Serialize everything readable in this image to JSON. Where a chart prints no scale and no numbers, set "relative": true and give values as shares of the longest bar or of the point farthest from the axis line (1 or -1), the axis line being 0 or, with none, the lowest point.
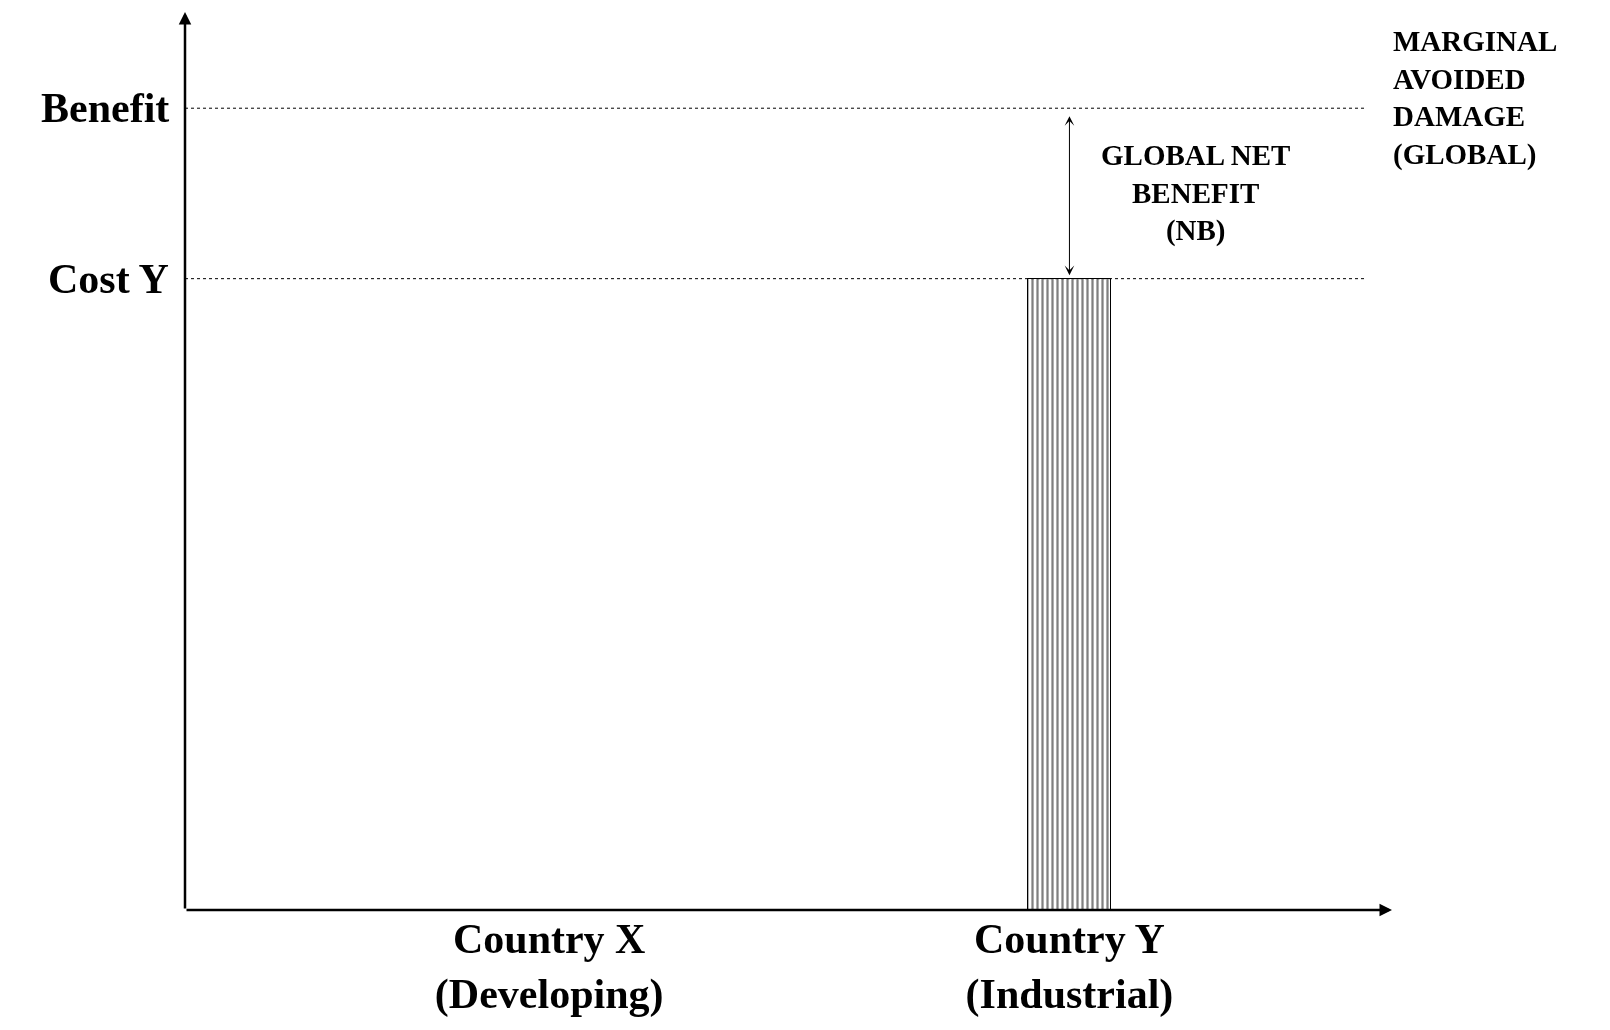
{
  "chart_data": {
    "type": "bar",
    "relative": true,
    "categories": [
      "Country X\n(Developing)",
      "Country Y\n(Industrial)"
    ],
    "series": [
      {
        "color": "#000000",
        "values": [
          null,
          1
        ]
      }
    ],
    "ref_lines": [
      {
        "axis": "y",
        "value": 1.27,
        "label": "Benefit",
        "line_style": "dotted",
        "color": "#000000"
      },
      {
        "axis": "y",
        "value": 1,
        "label": "Cost Y",
        "line_style": "dotted",
        "color": "#000000"
      }
    ],
    "annotations": [
      "GLOBAL NET\nBENEFIT\n(NB)",
      "MARGINAL\nAVOIDED\nDAMAGE\n(GLOBAL)"
    ]
  }
}
